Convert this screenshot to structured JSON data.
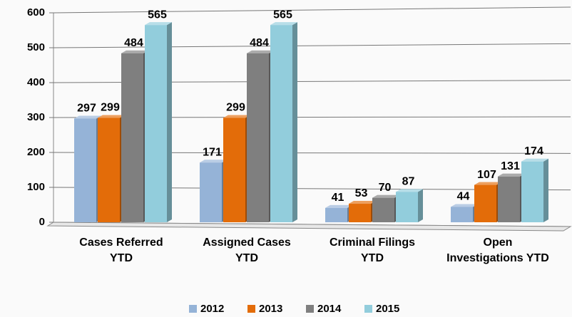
{
  "chart_data": {
    "type": "bar3d",
    "categories": [
      "Cases Referred YTD",
      "Assigned Cases YTD",
      "Criminal Filings YTD",
      "Open Investigations YTD"
    ],
    "series": [
      {
        "name": "2012",
        "color": "#95b3d7",
        "values": [
          297,
          171,
          41,
          44
        ]
      },
      {
        "name": "2013",
        "color": "#e36c09",
        "values": [
          299,
          299,
          53,
          107
        ]
      },
      {
        "name": "2014",
        "color": "#7f7f7f",
        "values": [
          484,
          484,
          70,
          131
        ]
      },
      {
        "name": "2015",
        "color": "#92cddc",
        "values": [
          565,
          565,
          87,
          174
        ]
      }
    ],
    "ylim": [
      0,
      600
    ],
    "yticks": [
      0,
      100,
      200,
      300,
      400,
      500,
      600
    ],
    "grid": true,
    "legend": "bottom"
  }
}
